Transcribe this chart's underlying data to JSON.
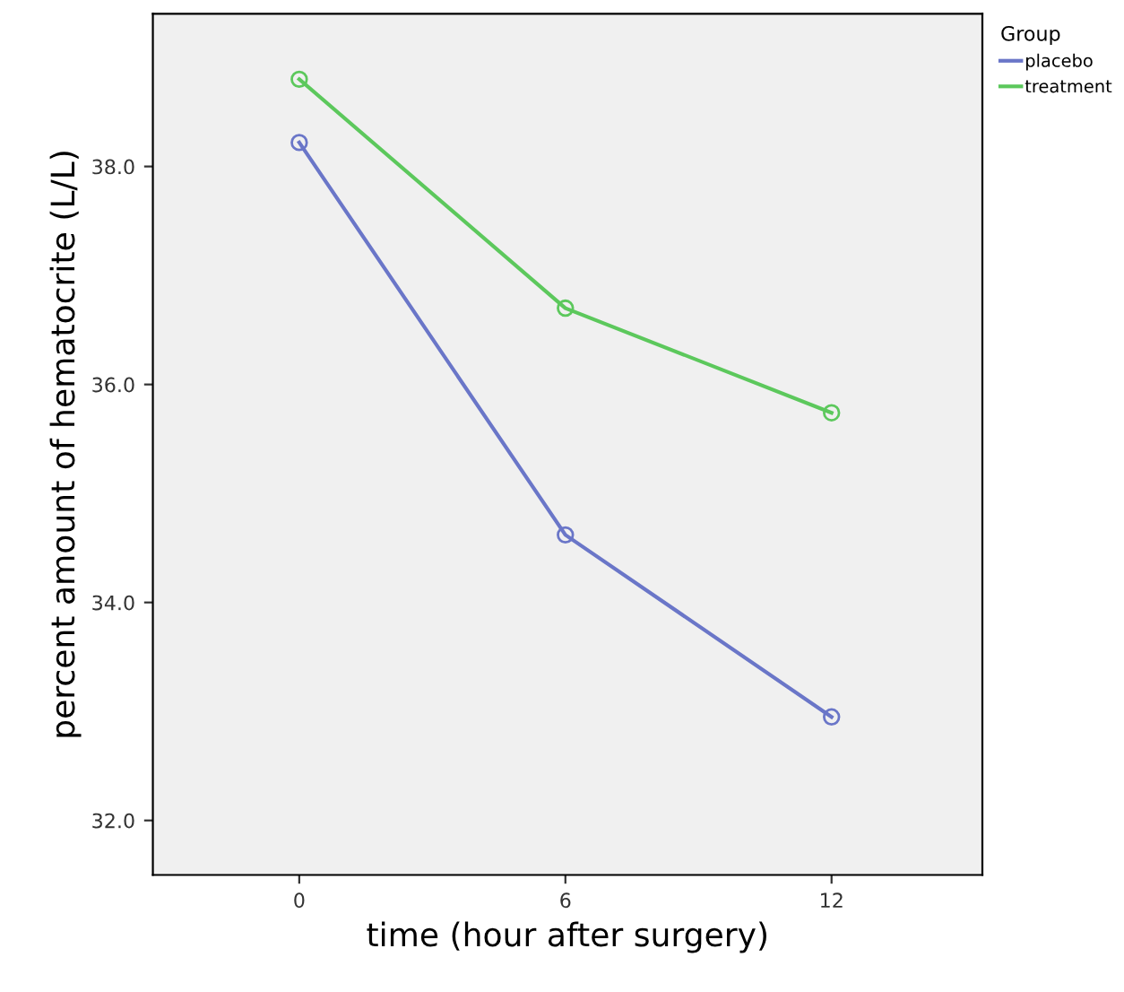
{
  "chart_data": {
    "type": "line",
    "xlabel": "time (hour after surgery)",
    "ylabel": "percent amount of hematocrite (L/L)",
    "legend_title": "Group",
    "x": [
      0,
      6,
      12
    ],
    "series": [
      {
        "name": "placebo",
        "color": "#6a76c8",
        "values": [
          38.22,
          34.62,
          32.95
        ]
      },
      {
        "name": "treatment",
        "color": "#5cc85c",
        "values": [
          38.8,
          36.7,
          35.74
        ]
      }
    ],
    "xlim": [
      -3.3,
      15.4
    ],
    "xticks": [
      0,
      6,
      12
    ],
    "ylim": [
      31.5,
      39.4
    ],
    "yticks": [
      {
        "value": 32,
        "label": "32.0"
      },
      {
        "value": 34,
        "label": "34.0"
      },
      {
        "value": 36,
        "label": "36.0"
      },
      {
        "value": 38,
        "label": "38.0"
      }
    ],
    "grid": false,
    "legend": "top right",
    "marker": "circle",
    "line_style": "solid"
  }
}
